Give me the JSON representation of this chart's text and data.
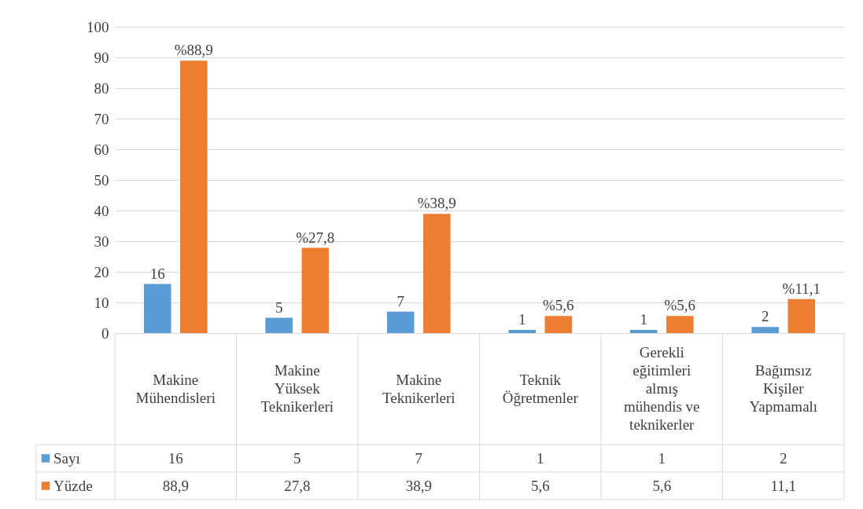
{
  "chart_data": {
    "type": "bar",
    "categories": [
      "Makine Mühendisleri",
      "Makine Yüksek Teknikerleri",
      "Makine Teknikerleri",
      "Teknik Öğretmenler",
      "Gerekli eğitimleri almış mühendis ve teknikerler",
      "Bağımsız Kişiler Yapmamalı"
    ],
    "series": [
      {
        "name": "Sayı",
        "color": "#5b9bd5",
        "values": [
          16,
          5,
          7,
          1,
          1,
          2
        ],
        "value_labels": [
          "16",
          "5",
          "7",
          "1",
          "1",
          "2"
        ]
      },
      {
        "name": "Yüzde",
        "color": "#ed7d31",
        "values": [
          88.9,
          27.8,
          38.9,
          5.6,
          5.6,
          11.1
        ],
        "value_labels": [
          "%88,9",
          "%27,8",
          "%38,9",
          "%5,6",
          "%5,6",
          "%11,1"
        ]
      }
    ],
    "ylim": [
      0,
      100
    ],
    "yticks": [
      0,
      10,
      20,
      30,
      40,
      50,
      60,
      70,
      80,
      90,
      100
    ],
    "grid": "y",
    "legend": "bottom",
    "annotations": [
      "16",
      "5",
      "7",
      "1",
      "1",
      "2",
      "88,9",
      "27,8",
      "38,9",
      "5,6",
      "5,6",
      "11,1"
    ]
  }
}
